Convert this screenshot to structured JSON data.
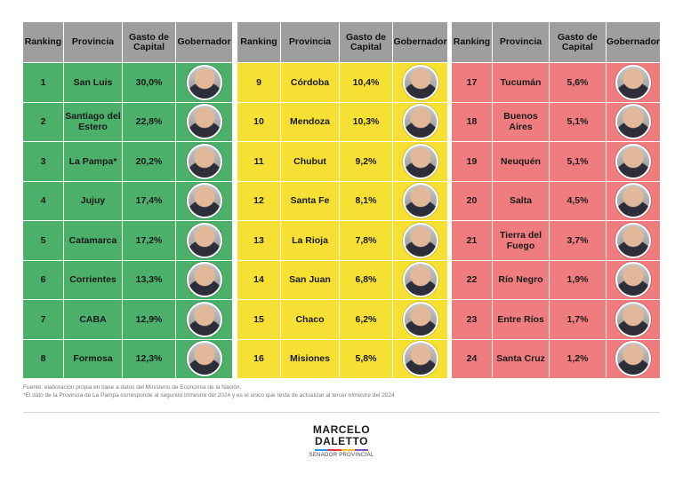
{
  "headers": {
    "ranking": "Ranking",
    "provincia": "Provincia",
    "gasto": "Gasto de Capital",
    "gobernador": "Gobernador"
  },
  "tables": [
    {
      "color": "#4caf6a",
      "rows": [
        {
          "rank": "1",
          "provincia": "San Luis",
          "gasto": "30,0%"
        },
        {
          "rank": "2",
          "provincia": "Santiago del Estero",
          "gasto": "22,8%"
        },
        {
          "rank": "3",
          "provincia": "La Pampa*",
          "gasto": "20,2%"
        },
        {
          "rank": "4",
          "provincia": "Jujuy",
          "gasto": "17,4%"
        },
        {
          "rank": "5",
          "provincia": "Catamarca",
          "gasto": "17,2%"
        },
        {
          "rank": "6",
          "provincia": "Corrientes",
          "gasto": "13,3%"
        },
        {
          "rank": "7",
          "provincia": "CABA",
          "gasto": "12,9%"
        },
        {
          "rank": "8",
          "provincia": "Formosa",
          "gasto": "12,3%"
        }
      ]
    },
    {
      "color": "#f6e033",
      "rows": [
        {
          "rank": "9",
          "provincia": "Córdoba",
          "gasto": "10,4%"
        },
        {
          "rank": "10",
          "provincia": "Mendoza",
          "gasto": "10,3%"
        },
        {
          "rank": "11",
          "provincia": "Chubut",
          "gasto": "9,2%"
        },
        {
          "rank": "12",
          "provincia": "Santa Fe",
          "gasto": "8,1%"
        },
        {
          "rank": "13",
          "provincia": "La Rioja",
          "gasto": "7,8%"
        },
        {
          "rank": "14",
          "provincia": "San Juan",
          "gasto": "6,8%"
        },
        {
          "rank": "15",
          "provincia": "Chaco",
          "gasto": "6,2%"
        },
        {
          "rank": "16",
          "provincia": "Misiones",
          "gasto": "5,8%"
        }
      ]
    },
    {
      "color": "#ef7c7e",
      "rows": [
        {
          "rank": "17",
          "provincia": "Tucumán",
          "gasto": "5,6%"
        },
        {
          "rank": "18",
          "provincia": "Buenos Aires",
          "gasto": "5,1%"
        },
        {
          "rank": "19",
          "provincia": "Neuquén",
          "gasto": "5,1%"
        },
        {
          "rank": "20",
          "provincia": "Salta",
          "gasto": "4,5%"
        },
        {
          "rank": "21",
          "provincia": "Tierra del Fuego",
          "gasto": "3,7%"
        },
        {
          "rank": "22",
          "provincia": "Río Negro",
          "gasto": "1,9%"
        },
        {
          "rank": "23",
          "provincia": "Entre Ríos",
          "gasto": "1,7%"
        },
        {
          "rank": "24",
          "provincia": "Santa Cruz",
          "gasto": "1,2%"
        }
      ]
    }
  ],
  "notes": {
    "source": "Fuente: elaboración propia en base a datos del Ministerio de Economía de la Nación.",
    "footnote": "*El dato de la Provincia de La Pampa corresponde al segundo trimestre del 2024 y es el único que resta de actualizar al tercer trimestre del 2024"
  },
  "brand": {
    "first": "MARCELO",
    "last": "DALETTO",
    "subtitle": "SENADOR PROVINCIAL"
  }
}
